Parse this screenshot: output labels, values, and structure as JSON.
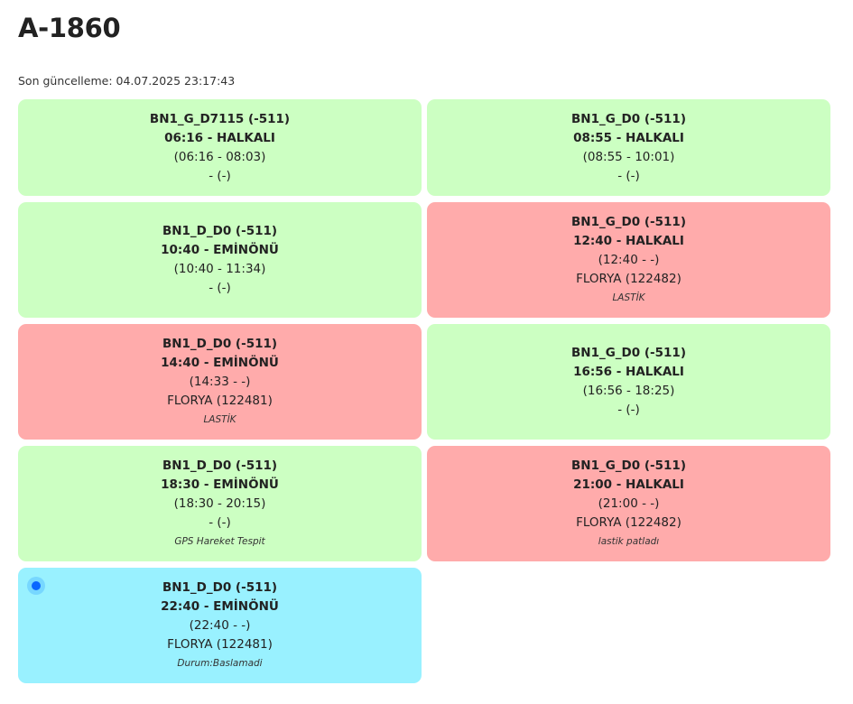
{
  "header": {
    "title": "A-1860",
    "updated": "Son güncelleme: 04.07.2025 23:17:43"
  },
  "status_colors": {
    "ok": "#ccffc2",
    "problem": "#ffabab",
    "active": "#99f1ff"
  },
  "trips": [
    {
      "code": "BN1_G_D7115 (-511)",
      "route": "06:16 - HALKALI",
      "times": "(06:16 - 08:03)",
      "vehicle": "- (-)",
      "note": ""
    },
    {
      "code": "BN1_G_D0 (-511)",
      "route": "08:55 - HALKALI",
      "times": "(08:55 - 10:01)",
      "vehicle": "- (-)",
      "note": ""
    },
    {
      "code": "BN1_D_D0 (-511)",
      "route": "10:40 - EMİNÖNÜ",
      "times": "(10:40 - 11:34)",
      "vehicle": "- (-)",
      "note": ""
    },
    {
      "code": "BN1_G_D0 (-511)",
      "route": "12:40 - HALKALI",
      "times": "(12:40 - -)",
      "vehicle": "FLORYA (122482)",
      "note": "LASTİK"
    },
    {
      "code": "BN1_D_D0 (-511)",
      "route": "14:40 - EMİNÖNÜ",
      "times": "(14:33 - -)",
      "vehicle": "FLORYA (122481)",
      "note": "LASTİK"
    },
    {
      "code": "BN1_G_D0 (-511)",
      "route": "16:56 - HALKALI",
      "times": "(16:56 - 18:25)",
      "vehicle": "- (-)",
      "note": ""
    },
    {
      "code": "BN1_D_D0 (-511)",
      "route": "18:30 - EMİNÖNÜ",
      "times": "(18:30 - 20:15)",
      "vehicle": "- (-)",
      "note": "GPS Hareket Tespit"
    },
    {
      "code": "BN1_G_D0 (-511)",
      "route": "21:00 - HALKALI",
      "times": "(21:00 - -)",
      "vehicle": "FLORYA (122482)",
      "note": "lastik patladı"
    },
    {
      "code": "BN1_D_D0 (-511)",
      "route": "22:40 - EMİNÖNÜ",
      "times": "(22:40 - -)",
      "vehicle": "FLORYA (122481)",
      "note": "Durum:Baslamadi"
    }
  ]
}
